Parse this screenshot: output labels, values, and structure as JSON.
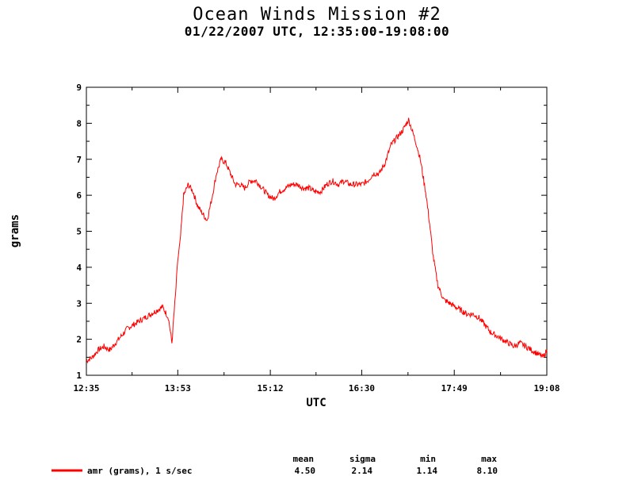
{
  "chart_data": {
    "type": "line",
    "title": "Ocean Winds Mission #2",
    "subtitle": "01/22/2007  UTC, 12:35:00-19:08:00",
    "xlabel": "UTC",
    "ylabel": "grams",
    "xlim": [
      "12:35",
      "19:08"
    ],
    "ylim": [
      1,
      9
    ],
    "x_tick_labels": [
      "12:35",
      "13:53",
      "15:12",
      "16:30",
      "17:49",
      "19:08"
    ],
    "y_tick_labels": [
      "1",
      "2",
      "3",
      "4",
      "5",
      "6",
      "7",
      "8",
      "9"
    ],
    "grid": false,
    "series": [
      {
        "name": "amr (grams), 1 s/sec",
        "color": "#ff0000",
        "x": [
          "12:35",
          "12:40",
          "12:45",
          "12:50",
          "12:55",
          "13:00",
          "13:05",
          "13:10",
          "13:15",
          "13:20",
          "13:25",
          "13:30",
          "13:35",
          "13:40",
          "13:45",
          "13:48",
          "13:50",
          "13:51",
          "13:53",
          "13:55",
          "13:58",
          "14:02",
          "14:06",
          "14:10",
          "14:14",
          "14:18",
          "14:22",
          "14:26",
          "14:30",
          "14:34",
          "14:38",
          "14:42",
          "14:46",
          "14:50",
          "14:55",
          "15:00",
          "15:05",
          "15:10",
          "15:15",
          "15:20",
          "15:25",
          "15:30",
          "15:35",
          "15:40",
          "15:45",
          "15:50",
          "15:55",
          "16:00",
          "16:05",
          "16:10",
          "16:15",
          "16:20",
          "16:25",
          "16:30",
          "16:35",
          "16:40",
          "16:45",
          "16:50",
          "16:55",
          "17:00",
          "17:05",
          "17:10",
          "17:13",
          "17:16",
          "17:20",
          "17:25",
          "17:28",
          "17:31",
          "17:35",
          "17:40",
          "17:45",
          "17:50",
          "17:55",
          "18:00",
          "18:05",
          "18:10",
          "18:15",
          "18:20",
          "18:25",
          "18:30",
          "18:35",
          "18:40",
          "18:45",
          "18:50",
          "18:55",
          "19:00",
          "19:05",
          "19:08"
        ],
        "y": [
          1.4,
          1.5,
          1.7,
          1.8,
          1.7,
          1.9,
          2.1,
          2.3,
          2.4,
          2.5,
          2.6,
          2.7,
          2.8,
          2.9,
          2.6,
          1.9,
          2.8,
          3.2,
          4.2,
          4.7,
          6.0,
          6.3,
          6.1,
          5.7,
          5.5,
          5.3,
          5.9,
          6.6,
          7.0,
          6.9,
          6.6,
          6.3,
          6.3,
          6.2,
          6.4,
          6.4,
          6.2,
          6.0,
          5.9,
          6.1,
          6.2,
          6.3,
          6.3,
          6.2,
          6.2,
          6.1,
          6.1,
          6.3,
          6.4,
          6.3,
          6.4,
          6.3,
          6.3,
          6.3,
          6.4,
          6.6,
          6.6,
          6.9,
          7.4,
          7.6,
          7.8,
          8.1,
          7.8,
          7.5,
          7.0,
          6.0,
          5.2,
          4.3,
          3.5,
          3.1,
          3.0,
          2.9,
          2.8,
          2.7,
          2.7,
          2.6,
          2.4,
          2.2,
          2.1,
          2.0,
          1.9,
          1.8,
          1.9,
          1.8,
          1.7,
          1.6,
          1.5,
          1.7
        ]
      }
    ],
    "stats": {
      "headers": [
        "mean",
        "sigma",
        "min",
        "max"
      ],
      "values": [
        "4.50",
        "2.14",
        "1.14",
        "8.10"
      ]
    }
  }
}
